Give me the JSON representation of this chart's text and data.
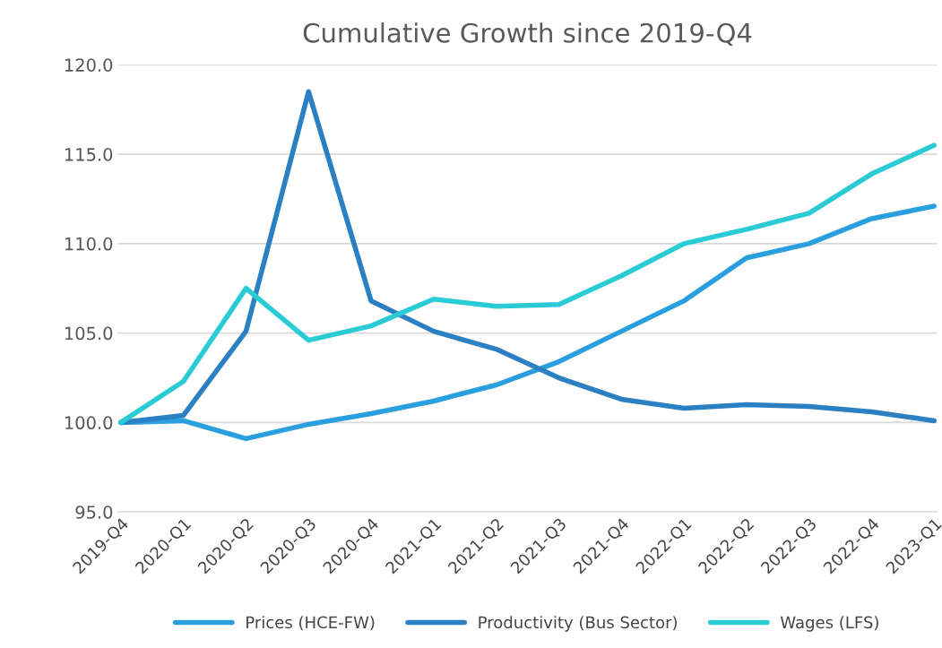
{
  "chart_data": {
    "type": "line",
    "title": "Cumulative Growth since 2019-Q4",
    "categories": [
      "2019-Q4",
      "2020-Q1",
      "2020-Q2",
      "2020-Q3",
      "2020-Q4",
      "2021-Q1",
      "2021-Q2",
      "2021-Q3",
      "2021-Q4",
      "2022-Q1",
      "2022-Q2",
      "2022-Q3",
      "2022-Q4",
      "2023-Q1"
    ],
    "series": [
      {
        "name": "Prices (HCE-FW)",
        "color": "#2a9fe0",
        "values": [
          100,
          100.1,
          99.1,
          99.9,
          100.5,
          101.2,
          102.1,
          103.4,
          105.1,
          106.8,
          109.2,
          110.0,
          111.4,
          112.1
        ]
      },
      {
        "name": "Productivity (Bus Sector)",
        "color": "#2b7fc3",
        "values": [
          100,
          100.4,
          105.1,
          118.5,
          106.8,
          105.1,
          104.1,
          102.5,
          101.3,
          100.8,
          101.0,
          100.9,
          100.6,
          100.1
        ]
      },
      {
        "name": "Wages (LFS)",
        "color": "#2bcbd6",
        "values": [
          100,
          102.3,
          107.5,
          104.6,
          105.4,
          106.9,
          106.5,
          106.6,
          108.2,
          110.0,
          110.8,
          111.7,
          113.9,
          115.5
        ]
      }
    ],
    "ylim": [
      95,
      120
    ],
    "yticks": [
      {
        "value": 95,
        "label": "95.0"
      },
      {
        "value": 100,
        "label": "100.0"
      },
      {
        "value": 105,
        "label": "105.0"
      },
      {
        "value": 110,
        "label": "110.0"
      },
      {
        "value": 115,
        "label": "115.0"
      },
      {
        "value": 120,
        "label": "120.0"
      }
    ],
    "grid": "y",
    "legend": "bottom",
    "marker": "none",
    "line_style": "solid"
  }
}
